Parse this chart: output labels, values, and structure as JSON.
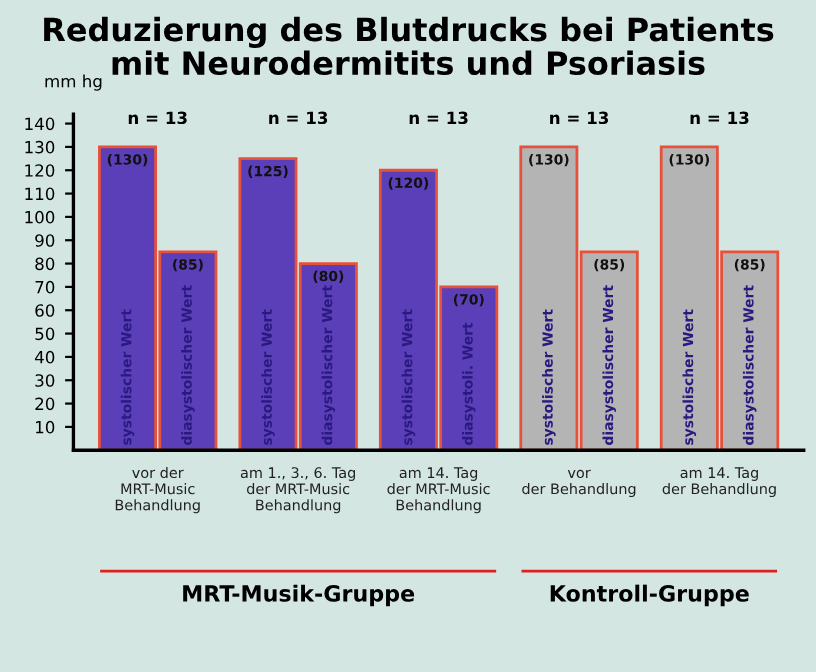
{
  "chart_data": {
    "type": "bar",
    "title": "Reduzierung des Blutdrucks bei Patients\nmit Neurodermitits und Psoriasis",
    "ylabel": "mm hg",
    "categories": [
      "vor der\nMRT-Music\nBehandlung",
      "am 1., 3., 6. Tag\nder MRT-Music\nBehandlung",
      "am 14. Tag\nder MRT-Music\nBehandlung",
      "vor\nder Behandlung",
      "am 14. Tag\nder Behandlung"
    ],
    "series": [
      {
        "values": [
          130,
          125,
          120,
          130,
          130
        ],
        "colors": [
          "#5b3fb8",
          "#5b3fb8",
          "#5b3fb8",
          "#b4b4b4",
          "#b4b4b4"
        ],
        "value_labels": [
          "(130)",
          "(125)",
          "(120)",
          "(130)",
          "(130)"
        ]
      },
      {
        "values": [
          85,
          80,
          70,
          85,
          85
        ],
        "colors": [
          "#5b3fb8",
          "#5b3fb8",
          "#5b3fb8",
          "#b4b4b4",
          "#b4b4b4"
        ],
        "value_labels": [
          "(85)",
          "(80)",
          "(70)",
          "(85)",
          "(85)"
        ]
      }
    ],
    "annotations": [
      "systolischer Wert",
      "diasystolischer Wert",
      "systolischer Wert",
      "diasystolischer Wert",
      "systolischer Wert",
      "diasystoli. Wert",
      "systolischer Wert",
      "diasystolischer Wert",
      "systolischer Wert",
      "diasystolischer Wert",
      "n = 13",
      "n = 13",
      "n = 13",
      "n = 13",
      "n = 13",
      "MRT-Musik-Gruppe",
      "Kontroll-Gruppe"
    ],
    "ylim": [
      0,
      144
    ],
    "yticks": [
      10,
      20,
      30,
      40,
      50,
      60,
      70,
      80,
      90,
      100,
      110,
      120,
      130,
      140
    ],
    "grid": false
  }
}
